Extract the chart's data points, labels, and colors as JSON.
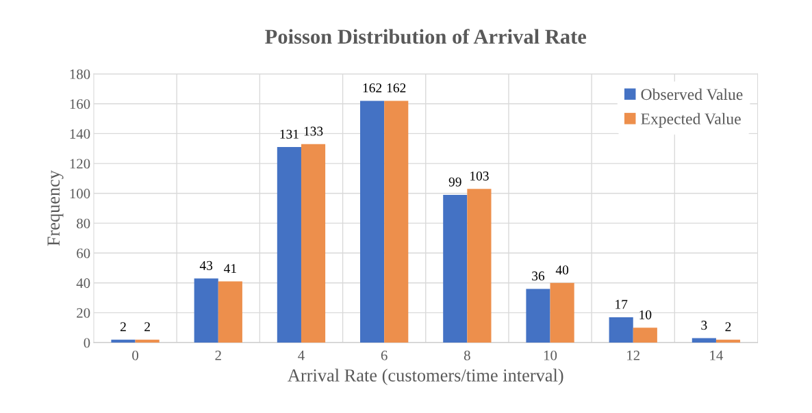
{
  "chart_data": {
    "type": "bar",
    "title": "Poisson Distribution of Arrival Rate",
    "xlabel": "Arrival Rate (customers/time interval)",
    "ylabel": "Frequency",
    "categories": [
      "0",
      "2",
      "4",
      "6",
      "8",
      "10",
      "12",
      "14"
    ],
    "series": [
      {
        "name": "Observed Value",
        "color": "#4472c4",
        "values": [
          2,
          43,
          131,
          162,
          99,
          36,
          17,
          3
        ]
      },
      {
        "name": "Expected Value",
        "color": "#ed8f4c",
        "values": [
          2,
          41,
          133,
          162,
          103,
          40,
          10,
          2
        ]
      }
    ],
    "ylim": [
      0,
      180
    ],
    "yticks": [
      0,
      20,
      40,
      60,
      80,
      100,
      120,
      140,
      160,
      180
    ],
    "grid": true,
    "legend": "top right",
    "data_labels": true
  }
}
